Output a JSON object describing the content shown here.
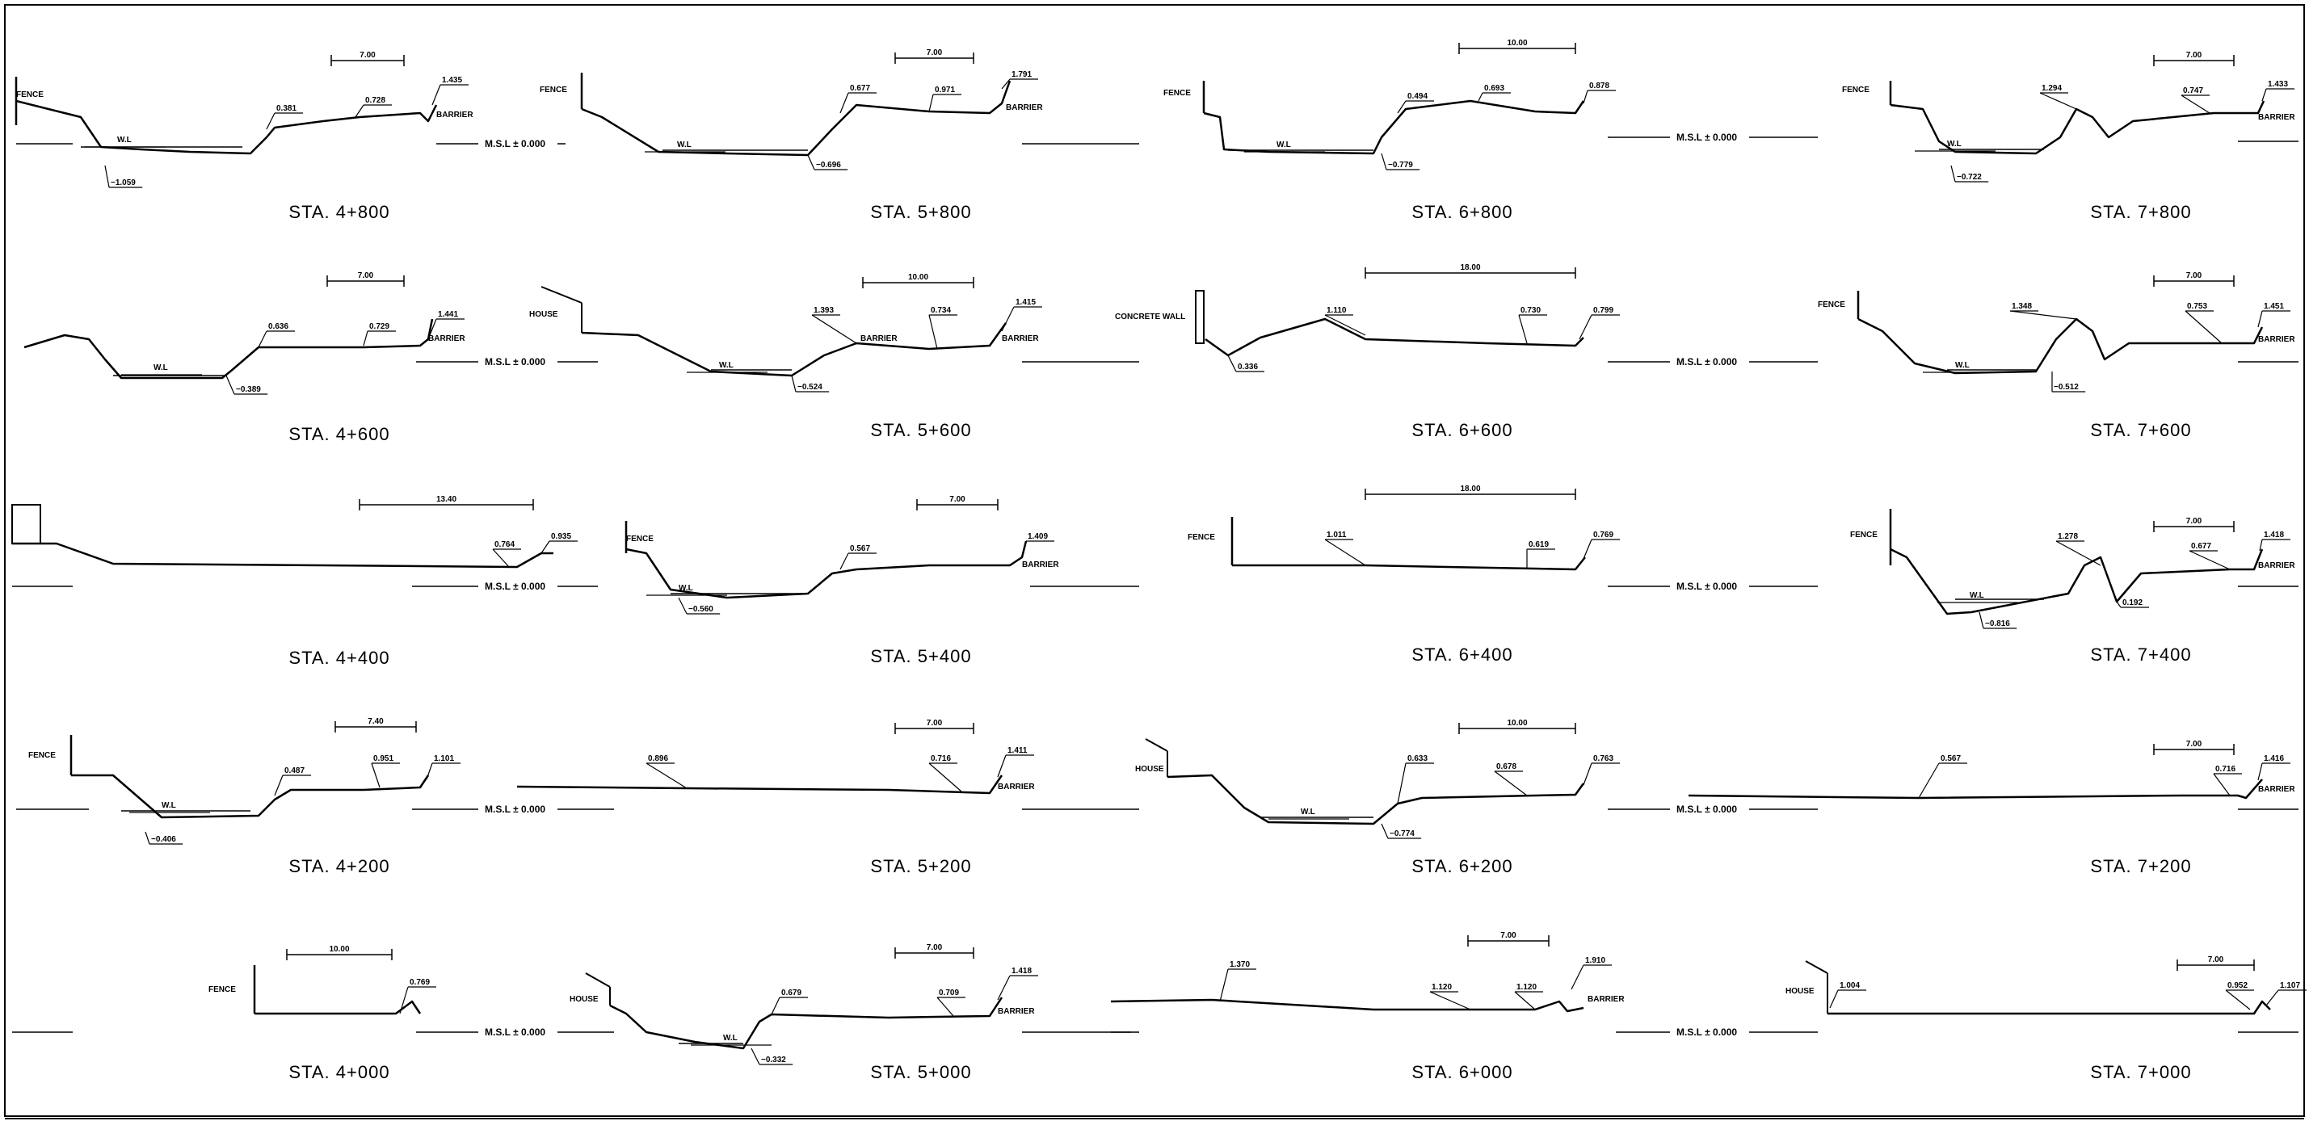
{
  "sheet": {
    "type": "cross-section drawing sheet",
    "msl_label": "M.S.L ± 0.000",
    "wl_label": "W.L",
    "sections": [
      {
        "station": "STA. 4+800",
        "labels": [
          "FENCE",
          "0.381",
          "0.728",
          "1.435",
          "BARRIER",
          "−1.059"
        ],
        "dimension": "7.00"
      },
      {
        "station": "STA. 5+800",
        "labels": [
          "FENCE",
          "0.677",
          "0.971",
          "1.791",
          "BARRIER",
          "−0.696"
        ],
        "dimension": "7.00"
      },
      {
        "station": "STA. 6+800",
        "labels": [
          "FENCE",
          "0.494",
          "0.693",
          "0.878",
          "−0.779"
        ],
        "dimension": "10.00"
      },
      {
        "station": "STA. 7+800",
        "labels": [
          "FENCE",
          "1.294",
          "0.747",
          "1.433",
          "BARRIER",
          "−0.722"
        ],
        "dimension": "7.00"
      },
      {
        "station": "STA. 4+600",
        "labels": [
          "0.636",
          "0.729",
          "1.441",
          "BARRIER",
          "−0.389"
        ],
        "dimension": "7.00"
      },
      {
        "station": "STA. 5+600",
        "labels": [
          "HOUSE",
          "1.393",
          "BARRIER",
          "0.734",
          "1.415",
          "BARRIER",
          "−0.524"
        ],
        "dimension": "10.00"
      },
      {
        "station": "STA. 6+600",
        "labels": [
          "CONCRETE WALL",
          "1.110",
          "0.730",
          "0.799",
          "0.336"
        ],
        "dimension": "18.00"
      },
      {
        "station": "STA. 7+600",
        "labels": [
          "FENCE",
          "1.348",
          "0.753",
          "1.451",
          "BARRIER",
          "−0.512"
        ],
        "dimension": "7.00"
      },
      {
        "station": "STA. 4+400",
        "labels": [
          "0.764",
          "0.935"
        ],
        "dimension": "13.40"
      },
      {
        "station": "STA. 5+400",
        "labels": [
          "FENCE",
          "0.567",
          "1.409",
          "BARRIER",
          "−0.560"
        ],
        "dimension": "7.00"
      },
      {
        "station": "STA. 6+400",
        "labels": [
          "FENCE",
          "1.011",
          "0.619",
          "0.769"
        ],
        "dimension": "18.00"
      },
      {
        "station": "STA. 7+400",
        "labels": [
          "FENCE",
          "1.278",
          "0.677",
          "1.418",
          "BARRIER",
          "0.192",
          "−0.816"
        ],
        "dimension": "7.00"
      },
      {
        "station": "STA. 4+200",
        "labels": [
          "FENCE",
          "0.487",
          "0.951",
          "1.101",
          "−0.406"
        ],
        "dimension": "7.40"
      },
      {
        "station": "STA. 5+200",
        "labels": [
          "0.896",
          "0.716",
          "1.411",
          "BARRIER"
        ],
        "dimension": "7.00"
      },
      {
        "station": "STA. 6+200",
        "labels": [
          "HOUSE",
          "0.633",
          "0.678",
          "0.763",
          "−0.774"
        ],
        "dimension": "10.00"
      },
      {
        "station": "STA. 7+200",
        "labels": [
          "0.567",
          "0.716",
          "1.416",
          "BARRIER"
        ],
        "dimension": "7.00"
      },
      {
        "station": "STA. 4+000",
        "labels": [
          "FENCE",
          "0.769"
        ],
        "dimension": "10.00"
      },
      {
        "station": "STA. 5+000",
        "labels": [
          "HOUSE",
          "0.679",
          "0.709",
          "1.418",
          "BARRIER",
          "−0.332"
        ],
        "dimension": "7.00"
      },
      {
        "station": "STA. 6+000",
        "labels": [
          "1.370",
          "1.120",
          "1.120",
          "1.910",
          "BARRIER"
        ],
        "dimension": "7.00"
      },
      {
        "station": "STA. 7+000",
        "labels": [
          "HOUSE",
          "1.004",
          "0.952",
          "1.107"
        ],
        "dimension": "7.00"
      }
    ]
  }
}
